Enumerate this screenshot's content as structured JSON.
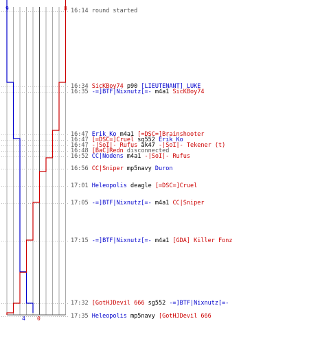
{
  "colors": {
    "blue": "#0000cc",
    "red": "#cc0000",
    "gray": "#555555",
    "black": "#000000",
    "grid": "#aaaaaa",
    "grid_dark": "#555555",
    "dotted": "#bbbbbb"
  },
  "scores": {
    "blue_start": "9",
    "red_start": "8",
    "blue_end": "4",
    "red_end": "0"
  },
  "chart_data": {
    "type": "line",
    "series": [
      {
        "color": "blue",
        "x": [
          0,
          0,
          1,
          1,
          2,
          2,
          3,
          3,
          4,
          4
        ],
        "y": [
          0,
          120,
          120,
          202,
          202,
          396,
          396,
          442,
          442,
          456
        ]
      },
      {
        "color": "red",
        "x": [
          0,
          0,
          1,
          1,
          2,
          2,
          3,
          3,
          4,
          4,
          5,
          5,
          6,
          6,
          7,
          7,
          8,
          8,
          9,
          9
        ],
        "y": [
          0,
          120,
          120,
          190,
          190,
          230,
          230,
          250,
          250,
          295,
          295,
          350,
          350,
          397,
          397,
          442,
          442,
          456,
          456,
          459
        ]
      }
    ],
    "event_times_y": [
      16,
      126,
      134,
      196,
      204,
      212,
      220,
      228,
      246,
      271,
      296,
      351,
      442,
      461
    ]
  },
  "events": [
    {
      "ts": "16:14",
      "parts": [
        {
          "text": "round started",
          "color": "gray"
        }
      ]
    },
    {
      "ts": "16:34",
      "parts": [
        {
          "text": "SicKBoy74",
          "color": "red"
        },
        {
          "text": " p90 ",
          "color": "black"
        },
        {
          "text": "[LIEUTENANT] LUKE",
          "color": "blue"
        }
      ]
    },
    {
      "ts": "16:35",
      "parts": [
        {
          "text": "-=]BTF|Nixnutz[=-",
          "color": "blue"
        },
        {
          "text": " m4a1 ",
          "color": "black"
        },
        {
          "text": "SicKBoy74",
          "color": "red"
        }
      ]
    },
    {
      "ts": "16:47",
      "parts": [
        {
          "text": "Erik_Ko",
          "color": "blue"
        },
        {
          "text": " m4a1 ",
          "color": "black"
        },
        {
          "text": "[=DSC=]Brainshooter",
          "color": "red"
        }
      ]
    },
    {
      "ts": "16:47",
      "parts": [
        {
          "text": "[=DSC=]Cruel",
          "color": "red"
        },
        {
          "text": " sg552 ",
          "color": "black"
        },
        {
          "text": "Erik_Ko",
          "color": "blue"
        }
      ]
    },
    {
      "ts": "16:47",
      "parts": [
        {
          "text": "-|SoI|- Rufus",
          "color": "red"
        },
        {
          "text": " ak47 ",
          "color": "black"
        },
        {
          "text": "-|SoI|- Tekener (t)",
          "color": "red"
        }
      ]
    },
    {
      "ts": "16:48",
      "parts": [
        {
          "text": "[BaC]Redn",
          "color": "red"
        },
        {
          "text": " disconnected",
          "color": "gray"
        }
      ]
    },
    {
      "ts": "16:52",
      "parts": [
        {
          "text": "CC|Nodens",
          "color": "blue"
        },
        {
          "text": " m4a1 ",
          "color": "black"
        },
        {
          "text": "-|SoI|- Rufus",
          "color": "red"
        }
      ]
    },
    {
      "ts": "16:56",
      "parts": [
        {
          "text": "CC|Sniper",
          "color": "red"
        },
        {
          "text": " mp5navy ",
          "color": "black"
        },
        {
          "text": "Duron",
          "color": "blue"
        }
      ]
    },
    {
      "ts": "17:01",
      "parts": [
        {
          "text": "Heleopolis",
          "color": "blue"
        },
        {
          "text": " deagle ",
          "color": "black"
        },
        {
          "text": "[=DSC=]Cruel",
          "color": "red"
        }
      ]
    },
    {
      "ts": "17:05",
      "parts": [
        {
          "text": "-=]BTF|Nixnutz[=-",
          "color": "blue"
        },
        {
          "text": " m4a1 ",
          "color": "black"
        },
        {
          "text": "CC|Sniper",
          "color": "red"
        }
      ]
    },
    {
      "ts": "17:15",
      "parts": [
        {
          "text": "-=]BTF|Nixnutz[=-",
          "color": "blue"
        },
        {
          "text": " m4a1 ",
          "color": "black"
        },
        {
          "text": "[GDA] Killer Fonz",
          "color": "red"
        }
      ]
    },
    {
      "ts": "17:32",
      "parts": [
        {
          "text": "[GotHJDevil 666",
          "color": "red"
        },
        {
          "text": " sg552 ",
          "color": "black"
        },
        {
          "text": "-=]BTF|Nixnutz[=-",
          "color": "blue"
        }
      ]
    },
    {
      "ts": "17:35",
      "parts": [
        {
          "text": "Heleopolis",
          "color": "blue"
        },
        {
          "text": " mp5navy ",
          "color": "black"
        },
        {
          "text": "[GotHJDevil 666",
          "color": "red"
        }
      ]
    }
  ]
}
